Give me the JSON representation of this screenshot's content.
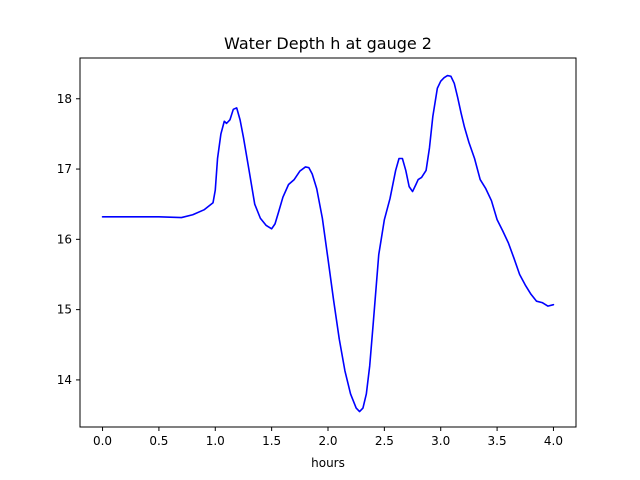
{
  "chart_data": {
    "type": "line",
    "title": "Water Depth h at gauge 2",
    "xlabel": "hours",
    "ylabel": "",
    "xlim": [
      -0.2,
      4.2
    ],
    "ylim": [
      13.33,
      18.58
    ],
    "xticks": [
      "0.0",
      "0.5",
      "1.0",
      "1.5",
      "2.0",
      "2.5",
      "3.0",
      "3.5",
      "4.0"
    ],
    "yticks": [
      "14",
      "15",
      "16",
      "17",
      "18"
    ],
    "grid": false,
    "legend": "none",
    "series": [
      {
        "color": "#0000ff",
        "x": [
          0.0,
          0.5,
          0.7,
          0.8,
          0.9,
          0.98,
          1.0,
          1.02,
          1.05,
          1.08,
          1.1,
          1.13,
          1.16,
          1.19,
          1.22,
          1.25,
          1.3,
          1.35,
          1.4,
          1.45,
          1.5,
          1.53,
          1.56,
          1.6,
          1.65,
          1.7,
          1.75,
          1.8,
          1.83,
          1.86,
          1.9,
          1.95,
          2.0,
          2.05,
          2.1,
          2.15,
          2.2,
          2.25,
          2.28,
          2.31,
          2.34,
          2.37,
          2.4,
          2.45,
          2.5,
          2.55,
          2.6,
          2.63,
          2.66,
          2.69,
          2.72,
          2.75,
          2.78,
          2.8,
          2.83,
          2.87,
          2.9,
          2.93,
          2.97,
          3.0,
          3.03,
          3.06,
          3.09,
          3.12,
          3.15,
          3.18,
          3.21,
          3.25,
          3.3,
          3.35,
          3.4,
          3.45,
          3.5,
          3.55,
          3.6,
          3.65,
          3.7,
          3.75,
          3.8,
          3.85,
          3.9,
          3.95,
          4.0
        ],
        "y": [
          16.32,
          16.32,
          16.31,
          16.35,
          16.42,
          16.52,
          16.7,
          17.15,
          17.5,
          17.68,
          17.65,
          17.7,
          17.85,
          17.87,
          17.7,
          17.45,
          16.98,
          16.5,
          16.3,
          16.2,
          16.15,
          16.22,
          16.38,
          16.6,
          16.78,
          16.85,
          16.97,
          17.03,
          17.02,
          16.93,
          16.72,
          16.3,
          15.72,
          15.13,
          14.58,
          14.13,
          13.8,
          13.6,
          13.55,
          13.6,
          13.8,
          14.2,
          14.78,
          15.78,
          16.28,
          16.58,
          16.98,
          17.15,
          17.15,
          16.98,
          16.75,
          16.68,
          16.78,
          16.85,
          16.88,
          16.98,
          17.3,
          17.75,
          18.15,
          18.25,
          18.3,
          18.33,
          18.32,
          18.22,
          18.02,
          17.8,
          17.6,
          17.38,
          17.15,
          16.85,
          16.72,
          16.55,
          16.28,
          16.12,
          15.95,
          15.73,
          15.5,
          15.35,
          15.22,
          15.12,
          15.1,
          15.05,
          15.07
        ]
      }
    ]
  }
}
